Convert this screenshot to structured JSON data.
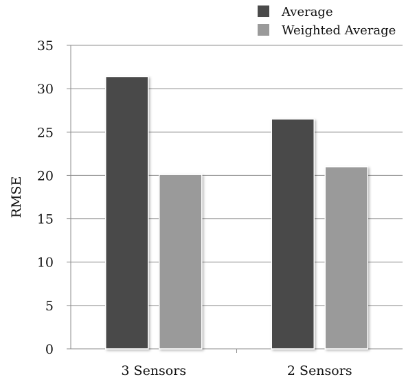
{
  "chart_data": {
    "type": "bar",
    "title": "",
    "xlabel": "",
    "ylabel": "RMSE",
    "ylim": [
      0,
      35
    ],
    "yticks": [
      0,
      5,
      10,
      15,
      20,
      25,
      30,
      35
    ],
    "grid": true,
    "legend_position": "top-right",
    "categories": [
      "3 Sensors",
      "2 Sensors"
    ],
    "series": [
      {
        "name": "Average",
        "values": [
          31.4,
          26.5
        ],
        "color": "#4a4a4a"
      },
      {
        "name": "Weighted Average",
        "values": [
          20.1,
          21.0
        ],
        "color": "#9a9a9a"
      }
    ]
  }
}
